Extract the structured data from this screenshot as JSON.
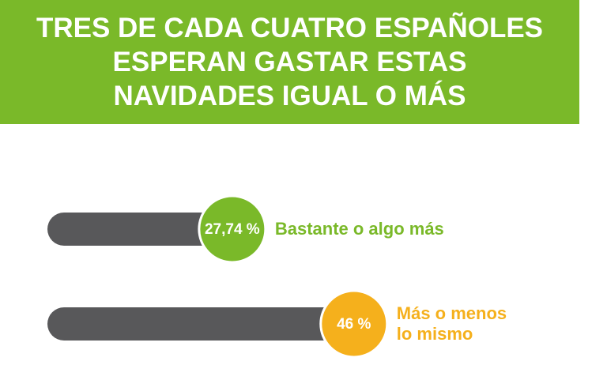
{
  "chart_data": {
    "type": "bar",
    "orientation": "horizontal",
    "title": "TRES DE CADA CUATRO ESPAÑOLES ESPERAN GASTAR ESTAS NAVIDADES IGUAL O MÁS",
    "categories": [
      "Bastante o algo más",
      "Más o menos lo mismo"
    ],
    "values": [
      27.74,
      46
    ],
    "value_labels": [
      "27,74 %",
      "46 %"
    ],
    "colors": [
      "#7ab929",
      "#f5b01c"
    ],
    "bar_color": "#58585a"
  }
}
